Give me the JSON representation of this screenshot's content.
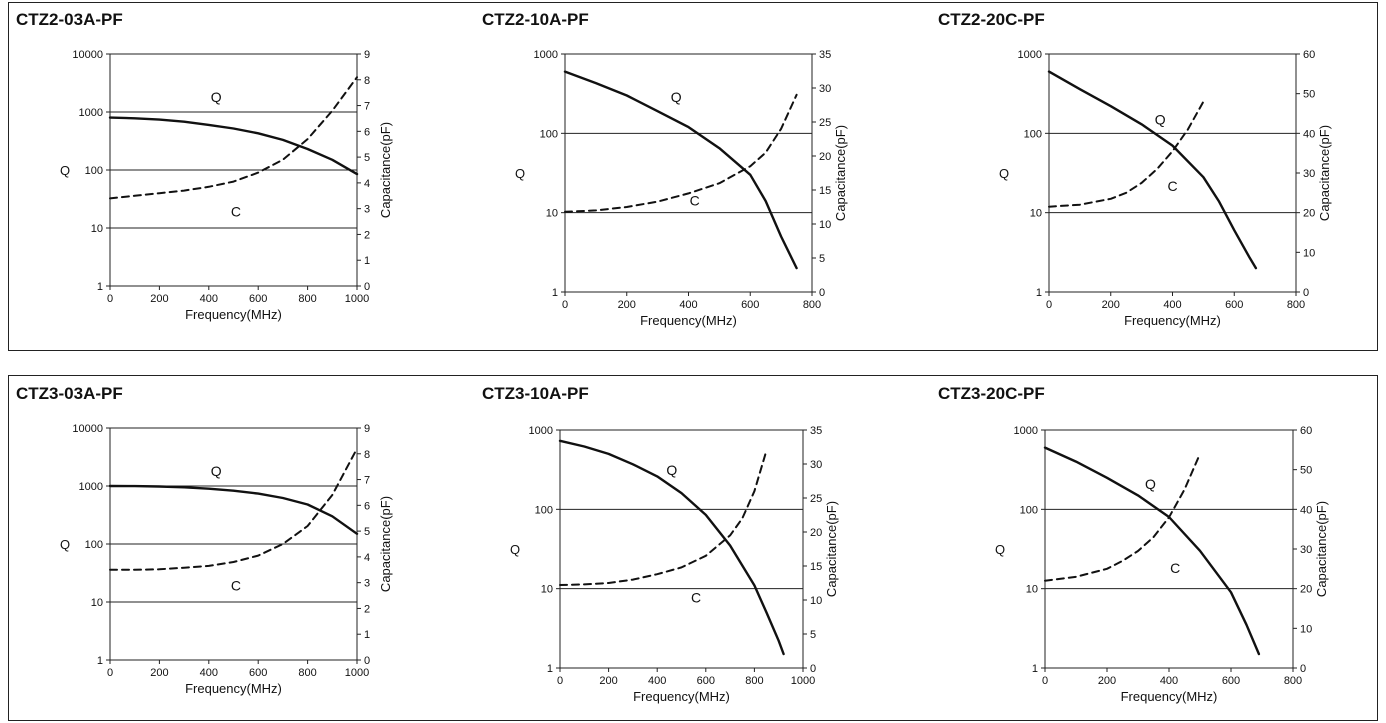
{
  "chart_data": [
    {
      "title": "CTZ2-03A-PF",
      "type": "line",
      "xlabel": "Frequency(MHz)",
      "ylabel": "Q",
      "y2label": "Capacitance(pF)",
      "xlim": [
        0,
        1000
      ],
      "xticks": [
        "0",
        "200",
        "400",
        "600",
        "800",
        "1000"
      ],
      "ylim": [
        1,
        10000
      ],
      "yscale": "log",
      "yticks": [
        "1",
        "10",
        "100",
        "1000",
        "10000"
      ],
      "y2lim": [
        0,
        9
      ],
      "y2ticks": [
        "0",
        "1",
        "2",
        "3",
        "4",
        "5",
        "6",
        "7",
        "8",
        "9"
      ],
      "series": [
        {
          "name": "Q",
          "axis": "left",
          "style": "solid",
          "x": [
            0,
            100,
            200,
            300,
            400,
            500,
            600,
            700,
            800,
            900,
            1000
          ],
          "y": [
            800,
            780,
            740,
            680,
            600,
            520,
            430,
            330,
            230,
            150,
            85
          ]
        },
        {
          "name": "C",
          "axis": "right",
          "style": "dashed",
          "x": [
            0,
            100,
            200,
            300,
            400,
            500,
            600,
            700,
            800,
            900,
            1000
          ],
          "y": [
            3.4,
            3.5,
            3.6,
            3.7,
            3.85,
            4.05,
            4.4,
            4.9,
            5.7,
            6.8,
            8.1
          ]
        }
      ],
      "annotations": [
        {
          "text": "Q",
          "x": 430,
          "y": 1500,
          "axis": "left"
        },
        {
          "text": "C",
          "x": 510,
          "y": 2.7,
          "axis": "right"
        }
      ]
    },
    {
      "title": "CTZ2-10A-PF",
      "type": "line",
      "xlabel": "Frequency(MHz)",
      "ylabel": "Q",
      "y2label": "Capacitance(pF)",
      "xlim": [
        0,
        800
      ],
      "xticks": [
        "0",
        "200",
        "400",
        "600",
        "800"
      ],
      "ylim": [
        1,
        1000
      ],
      "yscale": "log",
      "yticks": [
        "1",
        "10",
        "100",
        "1000"
      ],
      "y2lim": [
        0,
        35
      ],
      "y2ticks": [
        "0",
        "5",
        "10",
        "15",
        "20",
        "25",
        "30",
        "35"
      ],
      "series": [
        {
          "name": "Q",
          "axis": "left",
          "style": "solid",
          "x": [
            0,
            100,
            200,
            300,
            400,
            500,
            600,
            650,
            700,
            750
          ],
          "y": [
            600,
            430,
            300,
            190,
            120,
            65,
            30,
            14,
            5,
            2
          ]
        },
        {
          "name": "C",
          "axis": "right",
          "style": "dashed",
          "x": [
            0,
            100,
            200,
            300,
            400,
            500,
            600,
            650,
            700,
            750
          ],
          "y": [
            11.8,
            12,
            12.5,
            13.3,
            14.5,
            16,
            18.5,
            20.5,
            24,
            29
          ]
        }
      ],
      "annotations": [
        {
          "text": "Q",
          "x": 360,
          "y": 250,
          "axis": "left"
        },
        {
          "text": "C",
          "x": 420,
          "y": 12.7,
          "axis": "right"
        }
      ]
    },
    {
      "title": "CTZ2-20C-PF",
      "type": "line",
      "xlabel": "Frequency(MHz)",
      "ylabel": "Q",
      "y2label": "Capacitance(pF)",
      "xlim": [
        0,
        800
      ],
      "xticks": [
        "0",
        "200",
        "400",
        "600",
        "800"
      ],
      "ylim": [
        1,
        1000
      ],
      "yscale": "log",
      "yticks": [
        "1",
        "10",
        "100",
        "1000"
      ],
      "y2lim": [
        0,
        60
      ],
      "y2ticks": [
        "0",
        "10",
        "20",
        "30",
        "40",
        "50",
        "60"
      ],
      "series": [
        {
          "name": "Q",
          "axis": "left",
          "style": "solid",
          "x": [
            0,
            100,
            200,
            300,
            400,
            500,
            550,
            600,
            650,
            670
          ],
          "y": [
            600,
            360,
            220,
            130,
            70,
            28,
            14,
            6,
            2.7,
            2
          ]
        },
        {
          "name": "C",
          "axis": "right",
          "style": "dashed",
          "x": [
            0,
            100,
            200,
            250,
            300,
            350,
            400,
            450,
            500
          ],
          "y": [
            21.5,
            22,
            23.5,
            25,
            27.5,
            31,
            35.5,
            41,
            48
          ]
        }
      ],
      "annotations": [
        {
          "text": "Q",
          "x": 360,
          "y": 130,
          "axis": "left"
        },
        {
          "text": "C",
          "x": 400,
          "y": 25.5,
          "axis": "right"
        }
      ]
    },
    {
      "title": "CTZ3-03A-PF",
      "type": "line",
      "xlabel": "Frequency(MHz)",
      "ylabel": "Q",
      "y2label": "Capacitance(pF)",
      "xlim": [
        0,
        1000
      ],
      "xticks": [
        "0",
        "200",
        "400",
        "600",
        "800",
        "1000"
      ],
      "ylim": [
        1,
        10000
      ],
      "yscale": "log",
      "yticks": [
        "1",
        "10",
        "100",
        "1000",
        "10000"
      ],
      "y2lim": [
        0,
        9
      ],
      "y2ticks": [
        "0",
        "1",
        "2",
        "3",
        "4",
        "5",
        "6",
        "7",
        "8",
        "9"
      ],
      "series": [
        {
          "name": "Q",
          "axis": "left",
          "style": "solid",
          "x": [
            0,
            100,
            200,
            300,
            400,
            500,
            600,
            700,
            800,
            900,
            1000
          ],
          "y": [
            1000,
            995,
            980,
            950,
            900,
            830,
            740,
            620,
            480,
            300,
            150
          ]
        },
        {
          "name": "C",
          "axis": "right",
          "style": "dashed",
          "x": [
            0,
            100,
            200,
            300,
            400,
            500,
            600,
            700,
            800,
            900,
            1000
          ],
          "y": [
            3.5,
            3.5,
            3.52,
            3.58,
            3.65,
            3.8,
            4.05,
            4.5,
            5.2,
            6.4,
            8.2
          ]
        }
      ],
      "annotations": [
        {
          "text": "Q",
          "x": 430,
          "y": 1500,
          "axis": "left"
        },
        {
          "text": "C",
          "x": 510,
          "y": 2.7,
          "axis": "right"
        }
      ]
    },
    {
      "title": "CTZ3-10A-PF",
      "type": "line",
      "xlabel": "Frequency(MHz)",
      "ylabel": "Q",
      "y2label": "Capacitance(pF)",
      "xlim": [
        0,
        1000
      ],
      "xticks": [
        "0",
        "200",
        "400",
        "600",
        "800",
        "1000"
      ],
      "ylim": [
        1,
        1000
      ],
      "yscale": "log",
      "yticks": [
        "1",
        "10",
        "100",
        "1000"
      ],
      "y2lim": [
        0,
        35
      ],
      "y2ticks": [
        "0",
        "5",
        "10",
        "15",
        "20",
        "25",
        "30",
        "35"
      ],
      "series": [
        {
          "name": "Q",
          "axis": "left",
          "style": "solid",
          "x": [
            0,
            100,
            200,
            300,
            400,
            500,
            600,
            700,
            800,
            850,
            900,
            920
          ],
          "y": [
            730,
            620,
            500,
            370,
            260,
            160,
            85,
            35,
            11,
            5,
            2.2,
            1.5
          ]
        },
        {
          "name": "C",
          "axis": "right",
          "style": "dashed",
          "x": [
            0,
            100,
            200,
            300,
            400,
            500,
            600,
            700,
            750,
            800,
            850
          ],
          "y": [
            12.2,
            12.3,
            12.5,
            13,
            13.8,
            14.8,
            16.5,
            19.5,
            22,
            26,
            32
          ]
        }
      ],
      "annotations": [
        {
          "text": "Q",
          "x": 460,
          "y": 270,
          "axis": "left"
        },
        {
          "text": "C",
          "x": 560,
          "y": 9.6,
          "axis": "right"
        }
      ]
    },
    {
      "title": "CTZ3-20C-PF",
      "type": "line",
      "xlabel": "Frequency(MHz)",
      "ylabel": "Q",
      "y2label": "Capacitance(pF)",
      "xlim": [
        0,
        800
      ],
      "xticks": [
        "0",
        "200",
        "400",
        "600",
        "800"
      ],
      "ylim": [
        1,
        1000
      ],
      "yscale": "log",
      "yticks": [
        "1",
        "10",
        "100",
        "1000"
      ],
      "y2lim": [
        0,
        60
      ],
      "y2ticks": [
        "0",
        "10",
        "20",
        "30",
        "40",
        "50",
        "60"
      ],
      "series": [
        {
          "name": "Q",
          "axis": "left",
          "style": "solid",
          "x": [
            0,
            100,
            200,
            300,
            400,
            500,
            600,
            650,
            690
          ],
          "y": [
            600,
            400,
            250,
            150,
            80,
            30,
            9,
            3.5,
            1.5
          ]
        },
        {
          "name": "C",
          "axis": "right",
          "style": "dashed",
          "x": [
            0,
            100,
            200,
            250,
            300,
            350,
            400,
            450,
            500
          ],
          "y": [
            22,
            23,
            25,
            27,
            29.5,
            33,
            38,
            45,
            54
          ]
        }
      ],
      "annotations": [
        {
          "text": "Q",
          "x": 340,
          "y": 180,
          "axis": "left"
        },
        {
          "text": "C",
          "x": 420,
          "y": 24,
          "axis": "right"
        }
      ]
    }
  ]
}
